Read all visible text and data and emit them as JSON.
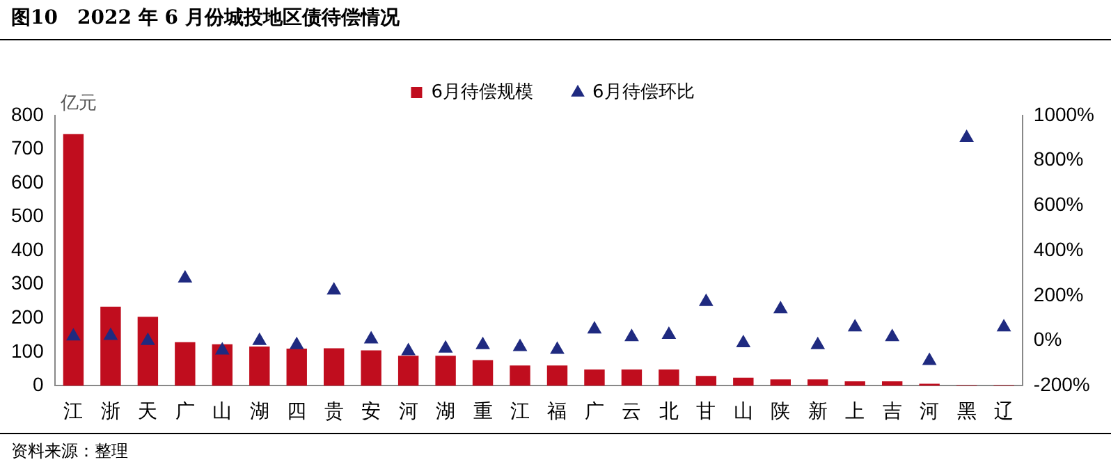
{
  "chart_data": {
    "type": "bar",
    "title": "图10　2022 年 6 月份城投地区债待偿情况",
    "categories": [
      "江",
      "浙",
      "天",
      "广",
      "山",
      "湖",
      "四",
      "贵",
      "安",
      "河",
      "湖",
      "重",
      "江",
      "福",
      "广",
      "云",
      "北",
      "甘",
      "山",
      "陕",
      "新",
      "上",
      "吉",
      "河",
      "黑",
      "辽"
    ],
    "series": [
      {
        "name": "6月待偿规模",
        "color": "#c00d1e",
        "values": [
          745,
          234,
          204,
          129,
          123,
          116,
          110,
          111,
          105,
          89,
          89,
          76,
          60,
          60,
          48,
          48,
          48,
          29,
          24,
          19,
          19,
          13,
          13,
          6,
          2,
          2
        ]
      },
      {
        "name": "6月待偿环比",
        "type": "scatter",
        "axis": "y2",
        "color": "#1f2a80",
        "values": [
          20,
          22,
          0,
          277,
          -43,
          0,
          -19,
          224,
          7,
          -46,
          -34,
          -19,
          -27,
          -40,
          51,
          17,
          27,
          173,
          -10,
          140,
          -19,
          60,
          17,
          -89,
          901,
          60
        ]
      }
    ],
    "ylabel": "亿元",
    "ylim": [
      0,
      800
    ],
    "yticks": [
      0,
      100,
      200,
      300,
      400,
      500,
      600,
      700,
      800
    ],
    "y2lim": [
      -200,
      1000
    ],
    "y2ticks": [
      {
        "value": -200,
        "label": "-200%"
      },
      {
        "value": 0,
        "label": "0%"
      },
      {
        "value": 200,
        "label": "200%"
      },
      {
        "value": 400,
        "label": "400%"
      },
      {
        "value": 600,
        "label": "600%"
      },
      {
        "value": 800,
        "label": "800%"
      },
      {
        "value": 1000,
        "label": "1000%"
      }
    ],
    "legend": "top",
    "grid": false,
    "marker": "triangle",
    "annotations": [
      "资料来源：整理"
    ]
  }
}
